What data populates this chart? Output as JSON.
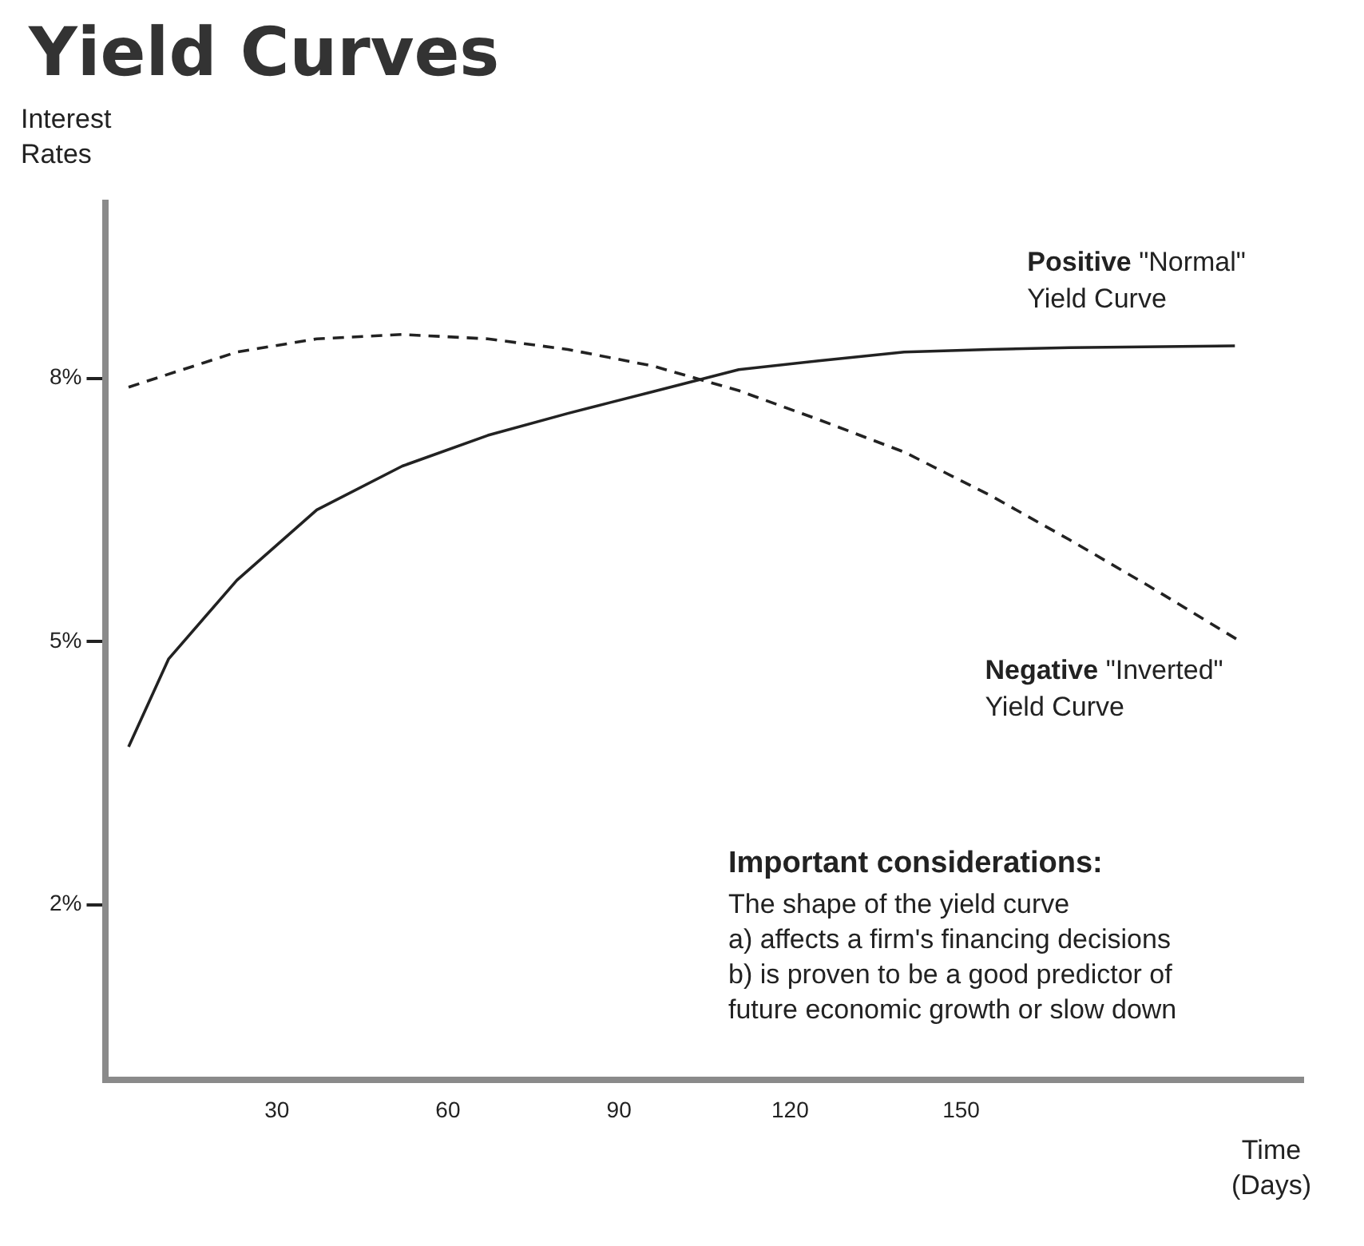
{
  "chart_data": {
    "type": "line",
    "title": "Yield Curves",
    "ylabel": "Interest Rates",
    "xlabel": "Time (Days)",
    "xlim": [
      0,
      210
    ],
    "xticks": [
      30,
      60,
      90,
      120,
      150
    ],
    "ylim": [
      0,
      10
    ],
    "yticks": [
      {
        "value": 2,
        "label": "2%"
      },
      {
        "value": 5,
        "label": "5%"
      },
      {
        "value": 8,
        "label": "8%"
      }
    ],
    "grid": false,
    "legend": false,
    "marker": "none",
    "series": [
      {
        "name": "Positive \"Normal\" Yield Curve",
        "color": "#222222",
        "line_style": "solid",
        "x": [
          4,
          11,
          23,
          37,
          52,
          67,
          81,
          96,
          111,
          125,
          140,
          155,
          169,
          198
        ],
        "values": [
          3.8,
          4.8,
          5.7,
          6.5,
          7.0,
          7.35,
          7.6,
          7.85,
          8.1,
          8.2,
          8.3,
          8.33,
          8.35,
          8.37
        ]
      },
      {
        "name": "Negative \"Inverted\" Yield Curve",
        "color": "#222222",
        "line_style": "dashed",
        "x": [
          4,
          23,
          37,
          52,
          67,
          81,
          96,
          111,
          125,
          140,
          155,
          169,
          183,
          199
        ],
        "values": [
          7.9,
          8.3,
          8.45,
          8.5,
          8.45,
          8.33,
          8.14,
          7.86,
          7.53,
          7.16,
          6.67,
          6.16,
          5.63,
          5.0
        ]
      }
    ],
    "annotations": [
      "Important considerations:",
      "The shape of the yield curve",
      "a) affects a firm's financing decisions",
      "b) is proven to be a good predictor of",
      "future economic growth or slow down"
    ]
  }
}
